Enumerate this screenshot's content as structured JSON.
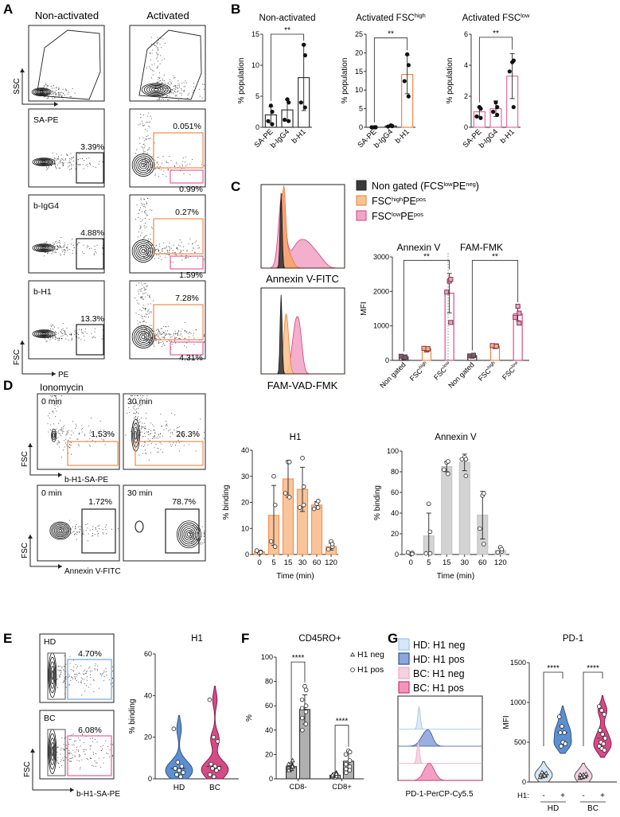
{
  "panel_letters": {
    "a": "A",
    "b": "B",
    "c": "C",
    "d": "D",
    "e": "E",
    "f": "F",
    "g": "G"
  },
  "panel_a": {
    "col_headers": [
      "Non-activated",
      "Activated"
    ],
    "top_axes": {
      "y": "SSC",
      "x": "FSC"
    },
    "bottom_axes": {
      "y": "FSC",
      "x": "PE"
    },
    "rows": [
      {
        "label": "SA-PE",
        "non_activated_pct": "3.39%",
        "activated_high_pct": "0.051%",
        "activated_low_pct": "0.99%"
      },
      {
        "label": "b-IgG4",
        "non_activated_pct": "4.88%",
        "activated_high_pct": "0.27%",
        "activated_low_pct": "1.59%"
      },
      {
        "label": "b-H1",
        "non_activated_pct": "13.3%",
        "activated_high_pct": "7.28%",
        "activated_low_pct": "4.31%"
      }
    ],
    "gate_colors": {
      "high": "#f08a4b",
      "low": "#e0629a",
      "black": "#222222"
    }
  },
  "panel_c": {
    "legend": [
      {
        "parts": [
          "Non gated (FCS",
          "low",
          "PE",
          "neg",
          ")"
        ],
        "fill": "#3a3a3a",
        "stroke": "#222222"
      },
      {
        "parts": [
          "FSC",
          "high",
          "PE",
          "pos",
          ""
        ],
        "fill": "#f9c48f",
        "stroke": "#f07b3a"
      },
      {
        "parts": [
          "FSC",
          "low",
          "PE",
          "pos",
          ""
        ],
        "fill": "#f2a6c6",
        "stroke": "#d63e7f"
      }
    ],
    "hist_labels": [
      "Annexin V-FITC",
      "FAM-VAD-FMK"
    ],
    "group_labels": [
      "Annexin V",
      "FAM-FMK"
    ]
  },
  "panel_d": {
    "treatment": "Ionomycin",
    "times": [
      "0 min",
      "30 min",
      "0 min",
      "30 min"
    ],
    "percents": [
      "1.53%",
      "26.3%",
      "1.72%",
      "78.7%"
    ],
    "y_axis": "FSC",
    "x_axes": [
      "b-H1-SA-PE",
      "Annexin V-FITC"
    ]
  },
  "panel_e": {
    "groups": [
      "HD",
      "BC"
    ],
    "percents": [
      "4.70%",
      "6.08%"
    ],
    "y_axis": "FSC",
    "x_axis": "b-H1-SA-PE"
  },
  "panel_g": {
    "legend": [
      {
        "label": "HD: H1 neg",
        "fill": "#d6e8f5",
        "stroke": "#9cc6e6"
      },
      {
        "label": "HD: H1 pos",
        "fill": "#8ea6dc",
        "stroke": "#2f5597"
      },
      {
        "label": "BC: H1 neg",
        "fill": "#f4d3e0",
        "stroke": "#e8a9c4"
      },
      {
        "label": "BC: H1 pos",
        "fill": "#f096bd",
        "stroke": "#d6336f"
      }
    ],
    "hist_label": "PD-1-PerCP-Cy5.5",
    "h1_prefix": "H1:",
    "signs": [
      "-",
      "+",
      "-",
      "+"
    ],
    "group_labels": [
      "HD",
      "BC"
    ]
  },
  "chart_data": [
    {
      "type": "bar",
      "title": "Non-activated",
      "title_sup": "",
      "ylabel": "% population",
      "xlabel": "",
      "categories": [
        "SA-PE",
        "b-IgG4",
        "b-H1"
      ],
      "ylim": [
        0,
        15
      ],
      "y_ticks": [
        0,
        5,
        10,
        15
      ],
      "rotate_labels": true,
      "series": [
        {
          "values": [
            2.0,
            2.8,
            8.0
          ],
          "sd": [
            1.3,
            1.7,
            5.3
          ],
          "fill": "#ffffff",
          "stroke": "#222222",
          "marker": "dot",
          "points": [
            [
              3.5,
              2.5,
              1.0,
              0.5
            ],
            [
              4.5,
              4.0,
              1.2,
              1.0
            ],
            [
              13.3,
              11.6,
              4.0,
              3.2
            ]
          ]
        }
      ],
      "significance": [
        {
          "from": [
            0,
            0
          ],
          "to": [
            2,
            0
          ],
          "y": 15,
          "label": "**"
        }
      ]
    },
    {
      "type": "bar",
      "title": "Activated FSC",
      "title_sup": "high",
      "ylabel": "% population",
      "xlabel": "",
      "categories": [
        "SA-PE",
        "b-IgG4",
        "b-H1"
      ],
      "ylim": [
        0,
        25
      ],
      "y_ticks": [
        0,
        5,
        10,
        15,
        20,
        25
      ],
      "rotate_labels": true,
      "series": [
        {
          "values": [
            0.0,
            0.35,
            14.2
          ],
          "sd": [
            0,
            0.15,
            5.2
          ],
          "fill": "#ffffff",
          "stroke": [
            "#222222",
            "#222222",
            "#f07b3a"
          ],
          "marker": "dot",
          "points": [
            [
              0,
              0,
              0,
              0
            ],
            [
              0.5,
              0.3,
              0.2,
              0.4
            ],
            [
              19.6,
              16.7,
              12.4,
              8.3
            ]
          ]
        }
      ],
      "significance": [
        {
          "from": [
            0,
            0
          ],
          "to": [
            2,
            0
          ],
          "y": 24,
          "label": "**"
        }
      ]
    },
    {
      "type": "bar",
      "title": "Activated FSC",
      "title_sup": "low",
      "ylabel": "% population",
      "xlabel": "",
      "categories": [
        "SA-PE",
        "b-IgG4",
        "b-H1"
      ],
      "ylim": [
        0,
        6
      ],
      "y_ticks": [
        0,
        2,
        4,
        6
      ],
      "rotate_labels": true,
      "series": [
        {
          "values": [
            1.0,
            1.2,
            3.3
          ],
          "sd": [
            0.3,
            0.5,
            1.45
          ],
          "fill": "#ffffff",
          "stroke": "#e0629a",
          "marker": "dot",
          "points": [
            [
              1.3,
              1.2,
              0.7,
              0.6
            ],
            [
              1.6,
              1.3,
              1.0,
              0.8
            ],
            [
              4.2,
              4.3,
              3.6,
              1.3
            ]
          ]
        }
      ],
      "significance": [
        {
          "from": [
            0,
            0
          ],
          "to": [
            2,
            0
          ],
          "y": 5.8,
          "label": "**"
        }
      ]
    },
    {
      "type": "bar",
      "title": "",
      "title_sup": "",
      "ylabel": "MFI",
      "xlabel": "",
      "categories": [
        "Non gated",
        "FSC",
        "FSC",
        "Non gated",
        "FSC",
        "FSC"
      ],
      "category_sup": [
        "",
        "high",
        "low",
        "",
        "high",
        "low"
      ],
      "ylim": [
        0,
        3000
      ],
      "y_ticks": [
        0,
        1000,
        2000,
        3000
      ],
      "rotate_labels": true,
      "series": [
        {
          "values": [
            100,
            330,
            1950,
            135,
            415,
            1350
          ],
          "sd": [
            20,
            25,
            570,
            15,
            15,
            200
          ],
          "fill": "#ffffff",
          "stroke": [
            "#222222",
            "#f07b3a",
            "#d63e7f",
            "#222222",
            "#f07b3a",
            "#d63e7f"
          ],
          "point_fill": [
            "#666666",
            "#f9b27a",
            "#e8a0bd",
            "#666666",
            "#f9b27a",
            "#e8a0bd"
          ],
          "marker": "square",
          "points": [
            [
              80,
              100,
              120,
              90
            ],
            [
              300,
              330,
              350,
              340
            ],
            [
              2300,
              2350,
              1980,
              1100
            ],
            [
              120,
              140,
              130,
              150
            ],
            [
              400,
              420,
              430,
              410
            ],
            [
              1570,
              1370,
              1250,
              1080
            ]
          ]
        }
      ],
      "significance": [
        {
          "from": [
            0,
            0
          ],
          "to": [
            2,
            0
          ],
          "y": 2900,
          "label": "**"
        },
        {
          "from": [
            3,
            0
          ],
          "to": [
            5,
            0
          ],
          "y": 2900,
          "label": "**"
        }
      ]
    },
    {
      "type": "bar",
      "title": "H1",
      "title_sup": "",
      "ylabel": "% binding",
      "xlabel": "Time (min)",
      "categories": [
        "0",
        "5",
        "15",
        "30",
        "60",
        "120"
      ],
      "ylim": [
        0,
        40
      ],
      "y_ticks": [
        0,
        10,
        20,
        30,
        40
      ],
      "rotate_labels": false,
      "series": [
        {
          "values": [
            1,
            15,
            29,
            25,
            19,
            3
          ],
          "sd": [
            0.5,
            11.5,
            7,
            8.5,
            1.3,
            1.3
          ],
          "fill": "#f9c49a",
          "stroke": "#f09050",
          "marker": "circle",
          "points": [
            [
              0.5,
              1,
              1.5,
              0.8
            ],
            [
              30,
              19,
              5,
              3
            ],
            [
              35.5,
              35.5,
              23.5,
              22
            ],
            [
              37,
              26,
              18,
              19
            ],
            [
              19.5,
              20.5,
              17.5,
              18
            ],
            [
              5,
              3,
              2,
              4
            ]
          ]
        }
      ],
      "significance": []
    },
    {
      "type": "bar",
      "title": "Annexin V",
      "title_sup": "",
      "ylabel": "% binding",
      "xlabel": "Time (min)",
      "categories": [
        "0",
        "5",
        "15",
        "30",
        "60",
        "120"
      ],
      "ylim": [
        0,
        100
      ],
      "y_ticks": [
        0,
        20,
        40,
        60,
        80,
        100
      ],
      "rotate_labels": false,
      "series": [
        {
          "values": [
            1,
            18,
            85,
            89,
            38,
            4
          ],
          "sd": [
            1,
            22,
            5,
            8,
            23,
            2
          ],
          "fill": "#d3d3d3",
          "stroke": "#c4c4c4",
          "marker": "circle",
          "points": [
            [
              0.5,
              1.5,
              2,
              0.5
            ],
            [
              49,
              1,
              1,
              22
            ],
            [
              89,
              90,
              82,
              78
            ],
            [
              94,
              92,
              92,
              76
            ],
            [
              57,
              59,
              25,
              10
            ],
            [
              7,
              3,
              2,
              5
            ]
          ]
        }
      ],
      "significance": []
    },
    {
      "type": "violin",
      "title": "H1",
      "ylabel": "% binding",
      "ylim": [
        0,
        60
      ],
      "y_ticks": [
        0,
        20,
        40,
        60
      ],
      "groups": [
        {
          "label": "HD",
          "fill": "#5b8fd0",
          "stroke": "#2d4f80",
          "points": [
            24,
            8,
            6,
            5,
            4,
            3,
            2,
            1
          ]
        },
        {
          "label": "BC",
          "fill": "#d64a86",
          "stroke": "#7a1a45",
          "points": [
            38,
            20,
            18,
            7,
            6,
            5,
            5,
            4,
            2,
            1
          ]
        }
      ]
    },
    {
      "type": "bar",
      "title": "CD45RO+",
      "title_sup": "",
      "ylabel": "%",
      "xlabel": "",
      "categories": [
        "CD8-",
        "CD8+"
      ],
      "ylim": [
        0,
        100
      ],
      "y_ticks": [
        0,
        20,
        40,
        60,
        80,
        100
      ],
      "rotate_labels": false,
      "series": [
        {
          "name": "H1 neg",
          "marker": "triangle",
          "values": [
            10,
            3
          ],
          "sd": [
            3,
            2
          ],
          "fill": "#b0b0b0",
          "stroke": "#333333",
          "points": [
            [
              8,
              10,
              12,
              15,
              9,
              11,
              7,
              10
            ],
            [
              1,
              2,
              3,
              5,
              2,
              4,
              3
            ]
          ]
        },
        {
          "name": "H1 pos",
          "marker": "circle",
          "values": [
            57,
            14.5
          ],
          "sd": [
            12,
            8
          ],
          "fill": "#b0b0b0",
          "stroke": "#333333",
          "points": [
            [
              76,
              73,
              65,
              60,
              58,
              55,
              50,
              45,
              40
            ],
            [
              23,
              22,
              20,
              15,
              12,
              10,
              8,
              7,
              5
            ]
          ]
        }
      ],
      "significance": [
        {
          "from": [
            0,
            0
          ],
          "to": [
            0,
            1
          ],
          "y": 96,
          "label": "****"
        },
        {
          "from": [
            1,
            0
          ],
          "to": [
            1,
            1
          ],
          "y": 44,
          "label": "****"
        }
      ]
    },
    {
      "type": "violin",
      "title": "PD-1",
      "ylabel": "MFI",
      "ylim": [
        0,
        1500
      ],
      "y_ticks": [
        0,
        500,
        1000,
        1500
      ],
      "groups": [
        {
          "label": "-",
          "fill": "#d6e8f5",
          "stroke": "#444444",
          "points": [
            60,
            70,
            80,
            90,
            100,
            110,
            120,
            80
          ]
        },
        {
          "label": "+",
          "fill": "#5b8fd0",
          "stroke": "#2d4f80",
          "points": [
            820,
            700,
            620,
            620,
            500,
            480,
            450
          ]
        },
        {
          "label": "-",
          "fill": "#f4d3e0",
          "stroke": "#444444",
          "points": [
            50,
            60,
            70,
            80,
            90,
            100,
            60,
            70,
            90
          ]
        },
        {
          "label": "+",
          "fill": "#d64a86",
          "stroke": "#7a1a45",
          "points": [
            950,
            900,
            850,
            650,
            600,
            550,
            500,
            480,
            450,
            420,
            400
          ]
        }
      ],
      "significance": [
        {
          "from": 0,
          "to": 1,
          "y": 1380,
          "label": "****"
        },
        {
          "from": 2,
          "to": 3,
          "y": 1380,
          "label": "****"
        }
      ]
    }
  ]
}
